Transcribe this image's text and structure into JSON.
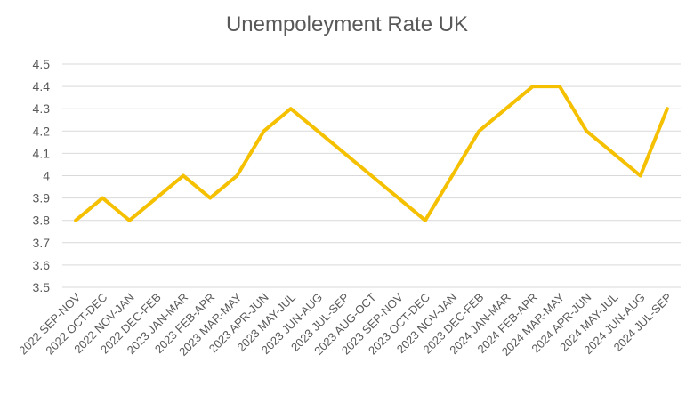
{
  "chart_data": {
    "type": "line",
    "title": "Unempoleyment Rate UK",
    "xlabel": "",
    "ylabel": "",
    "ylim": [
      3.5,
      4.5
    ],
    "yticks": [
      "3.5",
      "3.6",
      "3.7",
      "3.8",
      "3.9",
      "4",
      "4.1",
      "4.2",
      "4.3",
      "4.4",
      "4.5"
    ],
    "grid": true,
    "legend": "none",
    "line_color": "#F5C000",
    "categories": [
      "2022 SEP-NOV",
      "2022 OCT-DEC",
      "2022 NOV-JAN",
      "2022 DEC-FEB",
      "2023 JAN-MAR",
      "2023 FEB-APR",
      "2023 MAR-MAY",
      "2023 APR-JUN",
      "2023 MAY-JUL",
      "2023 JUN-AUG",
      "2023 JUL-SEP",
      "2023 AUG-OCT",
      "2023 SEP-NOV",
      "2023 OCT-DEC",
      "2023 NOV-JAN",
      "2023 DEC-FEB",
      "2024 JAN-MAR",
      "2024 FEB-APR",
      "2024 MAR-MAY",
      "2024 APR-JUN",
      "2024 MAY-JUL",
      "2024 JUN-AUG",
      "2024 JUL-SEP"
    ],
    "series": [
      {
        "values": [
          3.8,
          3.9,
          3.8,
          3.9,
          4.0,
          3.9,
          4.0,
          4.2,
          4.3,
          4.2,
          4.1,
          4.0,
          3.9,
          3.8,
          4.0,
          4.2,
          4.3,
          4.4,
          4.4,
          4.2,
          4.1,
          4.0,
          4.3
        ]
      }
    ]
  }
}
